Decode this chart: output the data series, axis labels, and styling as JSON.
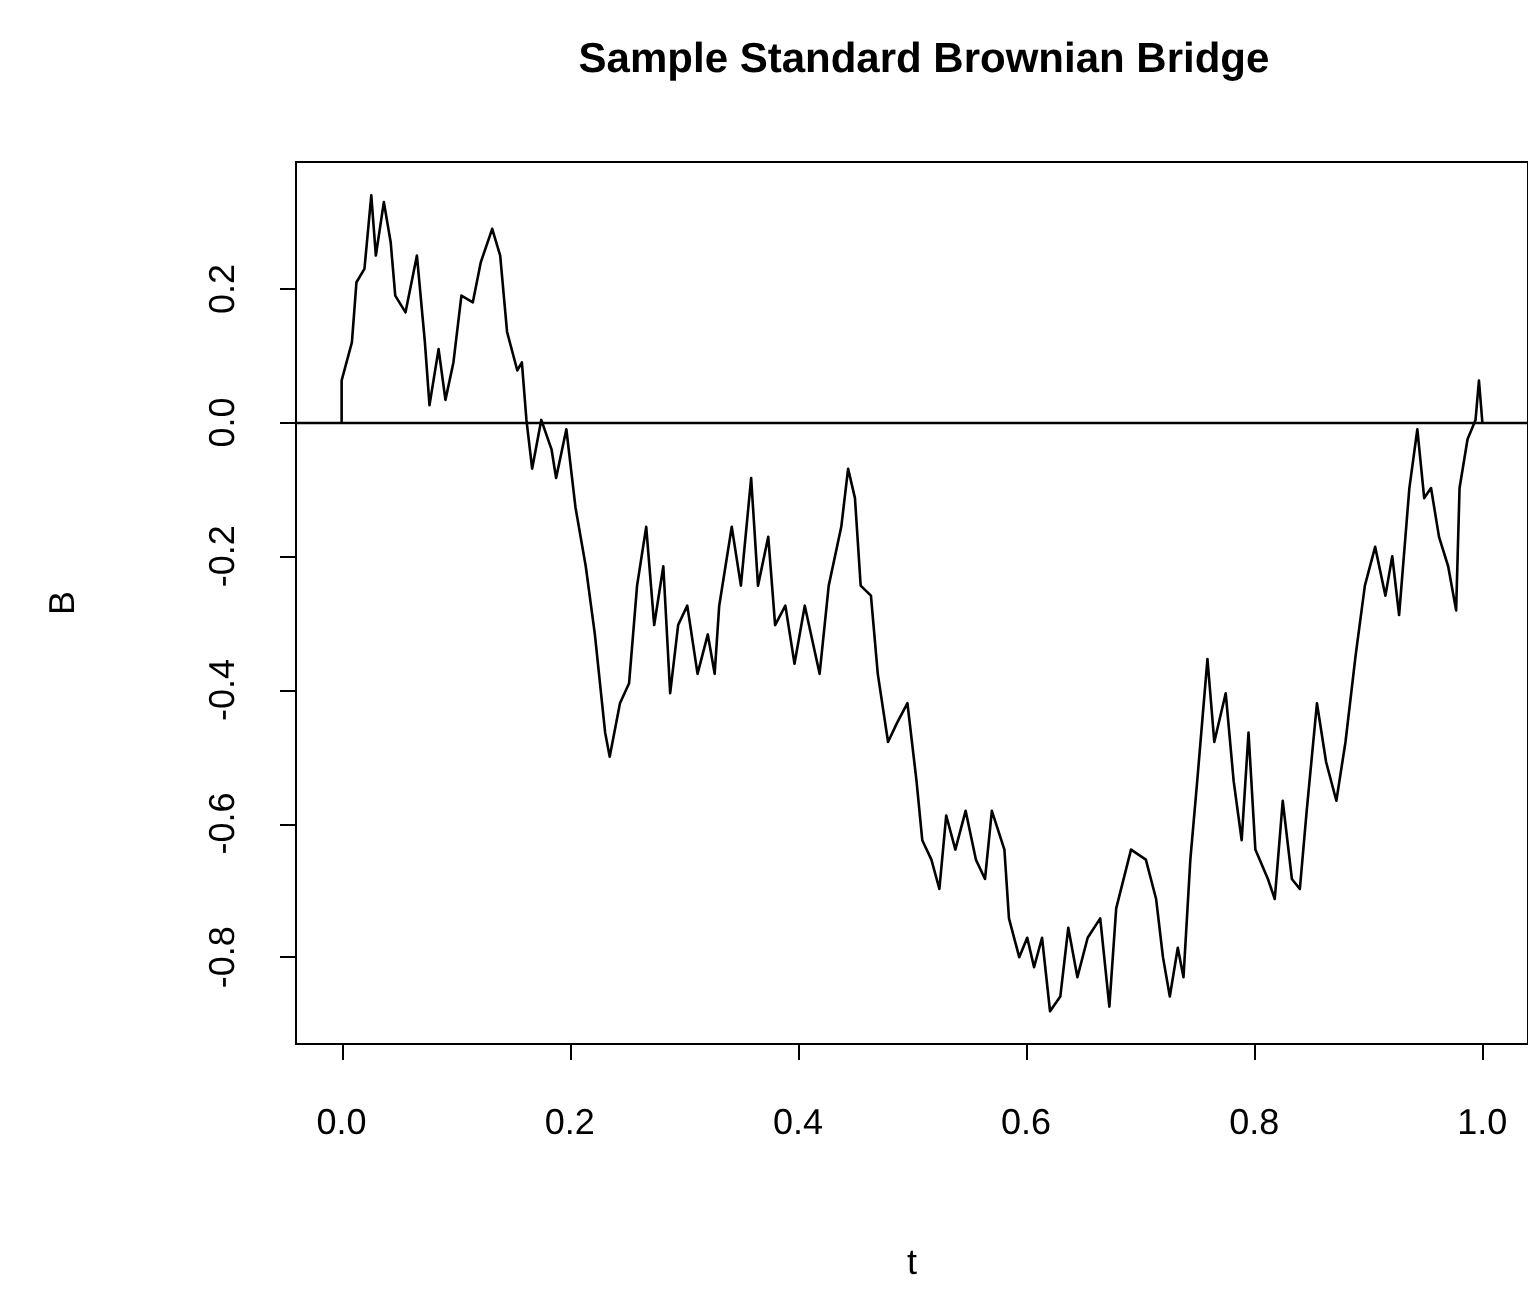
{
  "chart_data": {
    "type": "line",
    "title": "Sample Standard Brownian Bridge",
    "xlabel": "t",
    "ylabel": "B",
    "xlim": [
      -0.04,
      1.04
    ],
    "ylim": [
      -0.93,
      0.39
    ],
    "xticks": [
      {
        "value": 0,
        "label": "0.0"
      },
      0.2,
      0.4,
      0.6,
      0.8,
      {
        "value": 1,
        "label": "1.0"
      }
    ],
    "yticks": [
      -0.8,
      -0.6,
      -0.4,
      -0.2,
      {
        "value": 0,
        "label": "0.0"
      },
      0.2
    ],
    "grid": false,
    "marker": "none",
    "line_style": "solid",
    "ref_lines": [
      {
        "axis": "y",
        "value": 0,
        "color": "#000000",
        "line_style": "solid"
      }
    ],
    "series": [
      {
        "color": "#000000",
        "x": [
          0,
          0,
          0.009,
          0.013,
          0.02,
          0.026,
          0.03,
          0.037,
          0.043,
          0.047,
          0.056,
          0.066,
          0.073,
          0.077,
          0.085,
          0.091,
          0.098,
          0.105,
          0.115,
          0.122,
          0.132,
          0.139,
          0.145,
          0.154,
          0.158,
          0.162,
          0.167,
          0.175,
          0.184,
          0.188,
          0.197,
          0.205,
          0.214,
          0.222,
          0.231,
          0.235,
          0.244,
          0.252,
          0.259,
          0.267,
          0.274,
          0.282,
          0.288,
          0.295,
          0.303,
          0.312,
          0.321,
          0.327,
          0.331,
          0.342,
          0.35,
          0.359,
          0.365,
          0.374,
          0.38,
          0.389,
          0.397,
          0.406,
          0.419,
          0.427,
          0.438,
          0.444,
          0.45,
          0.455,
          0.464,
          0.47,
          0.479,
          0.487,
          0.496,
          0.504,
          0.509,
          0.517,
          0.524,
          0.53,
          0.538,
          0.547,
          0.556,
          0.564,
          0.57,
          0.581,
          0.585,
          0.594,
          0.601,
          0.607,
          0.614,
          0.621,
          0.63,
          0.637,
          0.645,
          0.654,
          0.665,
          0.673,
          0.679,
          0.692,
          0.705,
          0.714,
          0.72,
          0.726,
          0.733,
          0.738,
          0.744,
          0.75,
          0.759,
          0.765,
          0.775,
          0.782,
          0.789,
          0.795,
          0.801,
          0.812,
          0.818,
          0.825,
          0.833,
          0.84,
          0.846,
          0.855,
          0.863,
          0.872,
          0.88,
          0.889,
          0.897,
          0.906,
          0.915,
          0.921,
          0.927,
          0.936,
          0.943,
          0.949,
          0.955,
          0.962,
          0.97,
          0.977,
          0.98,
          0.987,
          0.994,
          0.997,
          1.0
        ],
        "values": [
          0,
          0.063,
          0.12,
          0.21,
          0.23,
          0.34,
          0.25,
          0.33,
          0.27,
          0.19,
          0.165,
          0.25,
          0.12,
          0.026,
          0.11,
          0.034,
          0.09,
          0.19,
          0.18,
          0.24,
          0.29,
          0.25,
          0.136,
          0.078,
          0.09,
          0.004,
          -0.069,
          0.004,
          -0.04,
          -0.083,
          -0.01,
          -0.127,
          -0.215,
          -0.317,
          -0.464,
          -0.5,
          -0.42,
          -0.39,
          -0.244,
          -0.156,
          -0.303,
          -0.215,
          -0.405,
          -0.303,
          -0.274,
          -0.376,
          -0.317,
          -0.376,
          -0.274,
          -0.156,
          -0.244,
          -0.083,
          -0.244,
          -0.171,
          -0.303,
          -0.274,
          -0.361,
          -0.274,
          -0.376,
          -0.244,
          -0.156,
          -0.069,
          -0.113,
          -0.244,
          -0.259,
          -0.376,
          -0.478,
          -0.449,
          -0.42,
          -0.537,
          -0.625,
          -0.654,
          -0.698,
          -0.588,
          -0.639,
          -0.581,
          -0.654,
          -0.683,
          -0.581,
          -0.639,
          -0.742,
          -0.8,
          -0.771,
          -0.815,
          -0.771,
          -0.881,
          -0.859,
          -0.756,
          -0.83,
          -0.771,
          -0.742,
          -0.874,
          -0.727,
          -0.639,
          -0.654,
          -0.713,
          -0.8,
          -0.859,
          -0.786,
          -0.83,
          -0.654,
          -0.537,
          -0.354,
          -0.478,
          -0.405,
          -0.537,
          -0.625,
          -0.464,
          -0.639,
          -0.683,
          -0.713,
          -0.566,
          -0.683,
          -0.698,
          -0.581,
          -0.42,
          -0.508,
          -0.566,
          -0.478,
          -0.347,
          -0.244,
          -0.186,
          -0.259,
          -0.2,
          -0.288,
          -0.098,
          -0.01,
          -0.113,
          -0.098,
          -0.171,
          -0.215,
          -0.281,
          -0.098,
          -0.025,
          0.004,
          0.063,
          0
        ]
      }
    ]
  }
}
